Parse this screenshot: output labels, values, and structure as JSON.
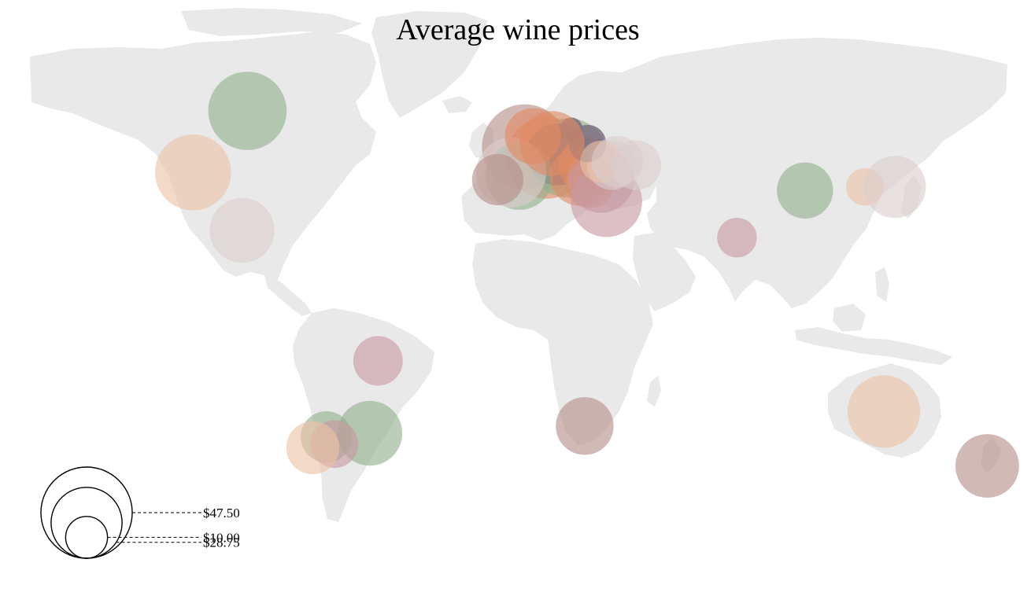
{
  "title": "Average wine prices",
  "palette": {
    "green": "#8fb08c",
    "peach": "#ecc2a4",
    "mauve": "#c79aa2",
    "rose": "#b48e88",
    "pale": "#dccdcd",
    "orange": "#e08a64",
    "slate": "#7b7081",
    "land": "#e9e9e9"
  },
  "legend": {
    "values": [
      47.5,
      28.75,
      10.0
    ],
    "labels": [
      "$47.50",
      "$28.75",
      "$10.00"
    ]
  },
  "chart_data": {
    "type": "bubble-map",
    "size_metric": "average price (USD)",
    "points": [
      {
        "lon": -100,
        "lat": 57,
        "value": 35,
        "color": "green"
      },
      {
        "lon": -120,
        "lat": 40,
        "value": 33,
        "color": "peach"
      },
      {
        "lon": -102,
        "lat": 24,
        "value": 24,
        "color": "pale"
      },
      {
        "lon": -52,
        "lat": -12,
        "value": 14,
        "color": "mauve"
      },
      {
        "lon": -55,
        "lat": -32,
        "value": 24,
        "color": "green"
      },
      {
        "lon": -71,
        "lat": -33,
        "value": 15,
        "color": "green"
      },
      {
        "lon": -68,
        "lat": -35,
        "value": 13,
        "color": "mauve"
      },
      {
        "lon": -76,
        "lat": -36,
        "value": 16,
        "color": "peach"
      },
      {
        "lon": 2,
        "lat": 47,
        "value": 42,
        "color": "rose"
      },
      {
        "lon": 10,
        "lat": 44,
        "value": 38,
        "color": "orange"
      },
      {
        "lon": 18,
        "lat": 44,
        "value": 36,
        "color": "green"
      },
      {
        "lon": 14,
        "lat": 45,
        "value": 22,
        "color": "slate"
      },
      {
        "lon": 0,
        "lat": 39,
        "value": 26,
        "color": "green"
      },
      {
        "lon": -3,
        "lat": 40,
        "value": 28,
        "color": "pale"
      },
      {
        "lon": -8,
        "lat": 38,
        "value": 15,
        "color": "rose"
      },
      {
        "lon": 22,
        "lat": 39,
        "value": 20,
        "color": "orange"
      },
      {
        "lon": 25,
        "lat": 42,
        "value": 19,
        "color": "orange"
      },
      {
        "lon": 26,
        "lat": 37,
        "value": 14,
        "color": "orange"
      },
      {
        "lon": 32,
        "lat": 32,
        "value": 29,
        "color": "mauve"
      },
      {
        "lon": 30,
        "lat": 38,
        "value": 25,
        "color": "mauve"
      },
      {
        "lon": 34,
        "lat": 42,
        "value": 14,
        "color": "pale"
      },
      {
        "lon": 25,
        "lat": 48,
        "value": 8,
        "color": "slate"
      },
      {
        "lon": 19,
        "lat": 52,
        "value": 3,
        "color": "slate"
      },
      {
        "lon": 30,
        "lat": 43,
        "value": 10,
        "color": "peach"
      },
      {
        "lon": 36,
        "lat": 43,
        "value": 15,
        "color": "pale"
      },
      {
        "lon": 43,
        "lat": 42,
        "value": 14,
        "color": "pale"
      },
      {
        "lon": 5,
        "lat": 50,
        "value": 18,
        "color": "orange"
      },
      {
        "lon": 12,
        "lat": 48,
        "value": 24,
        "color": "orange"
      },
      {
        "lon": 80,
        "lat": 22,
        "value": 9,
        "color": "mauve"
      },
      {
        "lon": 105,
        "lat": 35,
        "value": 18,
        "color": "green"
      },
      {
        "lon": 127,
        "lat": 36,
        "value": 8,
        "color": "peach"
      },
      {
        "lon": 138,
        "lat": 36,
        "value": 22,
        "color": "pale"
      },
      {
        "lon": 134,
        "lat": -26,
        "value": 30,
        "color": "peach"
      },
      {
        "lon": 172,
        "lat": -41,
        "value": 23,
        "color": "rose"
      },
      {
        "lon": 24,
        "lat": -30,
        "value": 19,
        "color": "rose"
      }
    ]
  }
}
